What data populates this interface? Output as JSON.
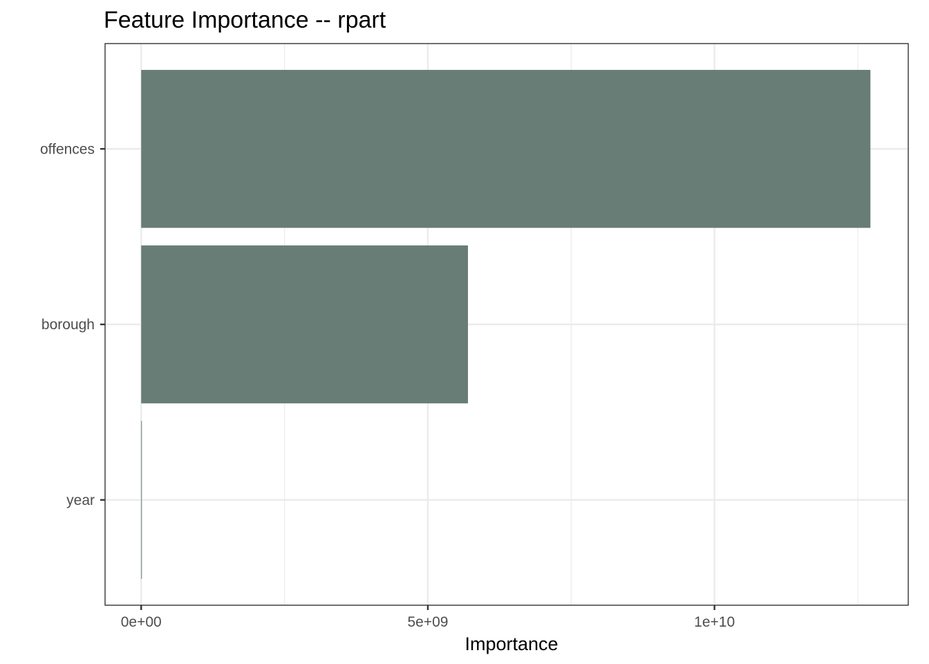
{
  "chart_data": {
    "type": "bar",
    "orientation": "horizontal",
    "title": "Feature Importance -- rpart",
    "xlabel": "Importance",
    "ylabel": "",
    "categories": [
      "offences",
      "borough",
      "year"
    ],
    "values": [
      12720000000,
      5700000000,
      5000000
    ],
    "xlim": [
      -630000000,
      13380000000
    ],
    "xticks": [
      0,
      5000000000,
      10000000000
    ],
    "xtick_labels": [
      "0e+00",
      "5e+09",
      "1e+10"
    ],
    "grid": true,
    "legend": "none",
    "bar_color": "#687d75"
  }
}
